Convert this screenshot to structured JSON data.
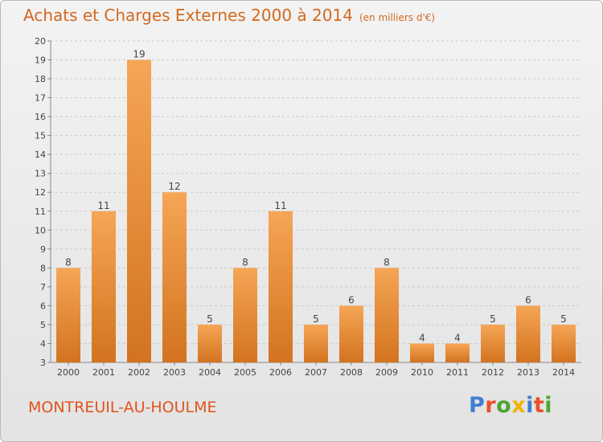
{
  "header": {
    "title": "Achats et Charges Externes 2000 à 2014",
    "unit": "(en milliers d'€)"
  },
  "footer": {
    "commune": "MONTREUIL-AU-HOULME",
    "brand": "Proxiti",
    "brand_colors": [
      "#3f7fd1",
      "#e8502a",
      "#4ea531",
      "#f0b400",
      "#3f7fd1",
      "#e8502a",
      "#4ea531"
    ]
  },
  "colors": {
    "bar_top": "#f5a656",
    "bar_bottom": "#d3731f",
    "title": "#d2691e",
    "grid": "#c9c9c9",
    "text": "#444444"
  },
  "chart_data": {
    "type": "bar",
    "categories": [
      "2000",
      "2001",
      "2002",
      "2003",
      "2004",
      "2005",
      "2006",
      "2007",
      "2008",
      "2009",
      "2010",
      "2011",
      "2012",
      "2013",
      "2014"
    ],
    "values": [
      8,
      11,
      19,
      12,
      5,
      8,
      11,
      5,
      6,
      8,
      4,
      4,
      5,
      6,
      5
    ],
    "ylim": [
      3,
      20
    ],
    "yticks": [
      3,
      4,
      5,
      6,
      7,
      8,
      9,
      10,
      11,
      12,
      13,
      14,
      15,
      16,
      17,
      18,
      19,
      20
    ],
    "grid": true,
    "data_labels": true
  }
}
